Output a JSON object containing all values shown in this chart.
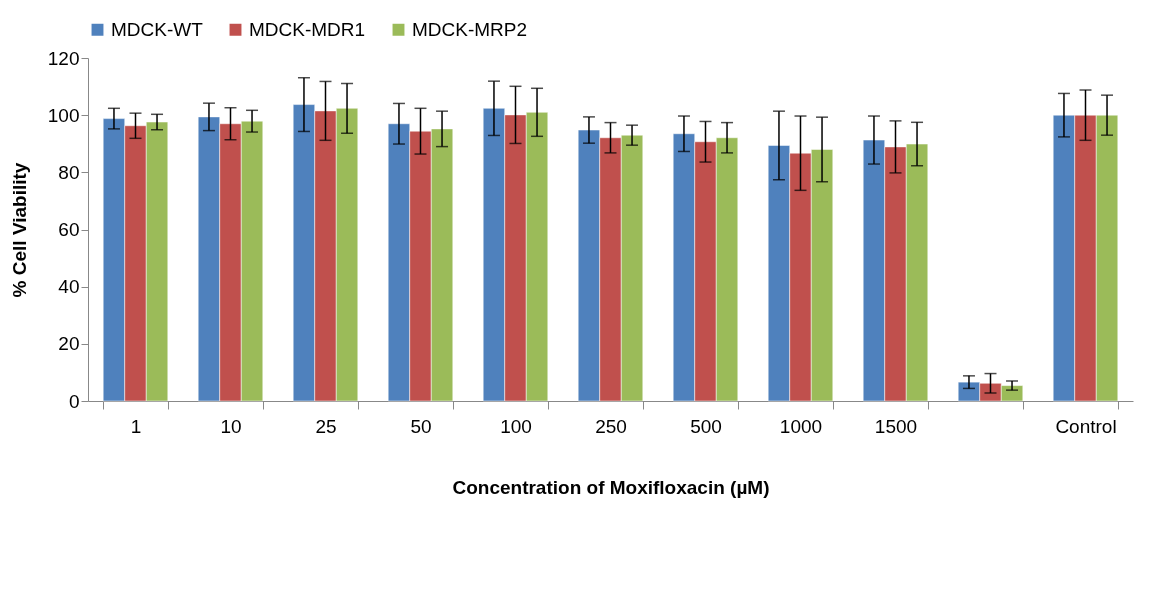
{
  "chart_data": {
    "type": "bar",
    "xlabel": "Concentration of Moxifloxacin (µM)",
    "ylabel": "% Cell Viability",
    "categories": [
      "1",
      "10",
      "25",
      "50",
      "100",
      "250",
      "500",
      "1000",
      "1500",
      null,
      "Control"
    ],
    "ylim": [
      0,
      120
    ],
    "yticks": [
      0,
      20,
      40,
      60,
      80,
      100,
      120
    ],
    "legend": "top",
    "series": [
      {
        "name": "MDCK-WT",
        "color": "#4f81bd",
        "values": [
          98.8,
          99.4,
          103.7,
          97,
          102.4,
          94.8,
          93.5,
          89.4,
          91.3,
          6.6,
          100
        ],
        "errors": [
          3.6,
          4.8,
          9.4,
          7.1,
          9.5,
          4.6,
          6.2,
          12,
          8.4,
          2.2,
          7.6
        ]
      },
      {
        "name": "MDCK-MDR1",
        "color": "#c0504d",
        "values": [
          96.3,
          97,
          101.5,
          94.4,
          100.1,
          92.1,
          90.7,
          86.7,
          88.9,
          6.2,
          100
        ],
        "errors": [
          4.4,
          5.6,
          10.3,
          8,
          10,
          5.3,
          7.1,
          13,
          9.1,
          3.4,
          8.8
        ]
      },
      {
        "name": "MDCK-MRP2",
        "color": "#9bbb59",
        "values": [
          97.6,
          97.9,
          102.4,
          95.2,
          101,
          93,
          92.1,
          88,
          89.9,
          5.4,
          100
        ],
        "errors": [
          2.7,
          3.8,
          8.7,
          6.2,
          8.4,
          3.5,
          5.3,
          11.3,
          7.6,
          1.6,
          7
        ]
      }
    ]
  }
}
